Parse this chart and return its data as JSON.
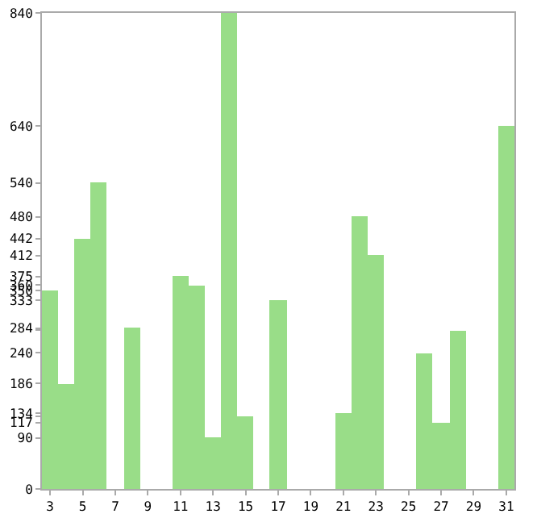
{
  "chart_data": {
    "type": "bar",
    "categories": [
      "3",
      null,
      "5",
      null,
      "7",
      null,
      "9",
      null,
      "11",
      null,
      "13",
      null,
      "15",
      null,
      "17",
      null,
      "19",
      null,
      "21",
      null,
      "23",
      null,
      "25",
      null,
      "27",
      null,
      "29",
      null,
      "31"
    ],
    "values": [
      350,
      186,
      442,
      540,
      0,
      284,
      0,
      0,
      375,
      360,
      90,
      840,
      128,
      0,
      333,
      0,
      0,
      0,
      134,
      480,
      412,
      0,
      0,
      240,
      117,
      280,
      0,
      0,
      640
    ],
    "color": "#99dd88",
    "ylim": [
      0,
      840
    ],
    "yticks": [
      0,
      90,
      117,
      {
        "value": 128,
        "label": null
      },
      134,
      186,
      240,
      {
        "value": 280,
        "label": null
      },
      284,
      333,
      350,
      360,
      375,
      412,
      442,
      480,
      540,
      640,
      840
    ],
    "grid": false
  }
}
